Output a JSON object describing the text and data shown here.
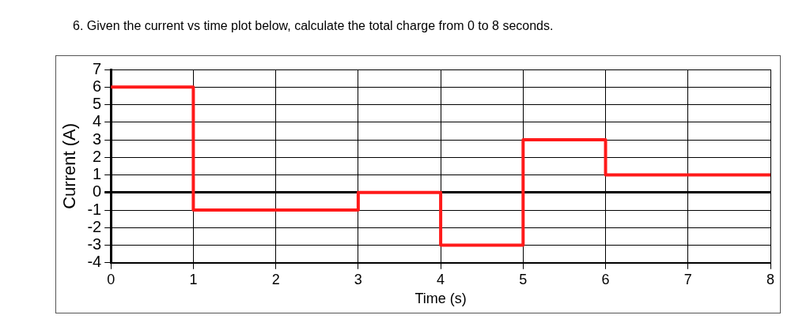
{
  "chart_data": {
    "type": "step",
    "title": "6.   Given the current vs time plot below, calculate the total charge from 0 to 8 seconds.",
    "xlabel": "Time (s)",
    "ylabel": "Current (A)",
    "x": [
      0,
      1,
      3,
      4,
      5,
      6,
      8
    ],
    "series": [
      {
        "color": "#ff1a1a",
        "values": [
          6,
          -1,
          0,
          -3,
          3,
          1,
          1
        ]
      }
    ],
    "xlim": [
      0,
      8
    ],
    "xticks": [
      0,
      1,
      2,
      3,
      4,
      5,
      6,
      7,
      8
    ],
    "ylim": [
      -4,
      7
    ],
    "yticks": [
      -4,
      -3,
      -2,
      -1,
      0,
      1,
      2,
      3,
      4,
      5,
      6,
      7
    ],
    "grid": true,
    "legend": false,
    "marker": "none",
    "line_style": "solid"
  }
}
